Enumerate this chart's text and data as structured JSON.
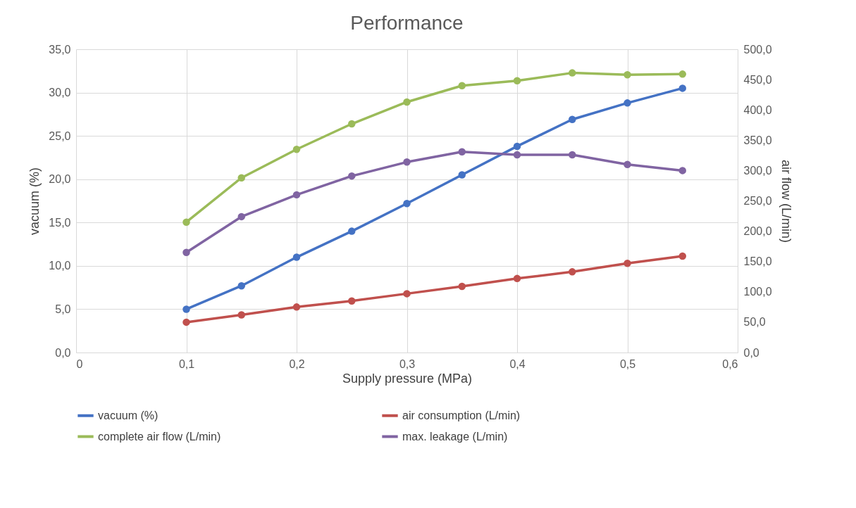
{
  "chart_data": {
    "type": "line",
    "title": "Performance",
    "xlabel": "Supply pressure (MPa)",
    "ylabel": "vacuum (%)",
    "y2label": "air flow (L/min)",
    "x": [
      0.1,
      0.15,
      0.2,
      0.25,
      0.3,
      0.35,
      0.4,
      0.45,
      0.5,
      0.55
    ],
    "xlim": [
      0,
      0.6
    ],
    "xticks": [
      {
        "value": 0,
        "label": "0"
      },
      {
        "value": 0.1,
        "label": "0,1"
      },
      {
        "value": 0.2,
        "label": "0,2"
      },
      {
        "value": 0.3,
        "label": "0,3"
      },
      {
        "value": 0.4,
        "label": "0,4"
      },
      {
        "value": 0.5,
        "label": "0,5"
      },
      {
        "value": 0.6,
        "label": "0,6"
      }
    ],
    "ylim": [
      0,
      35
    ],
    "yticks": [
      {
        "value": 0,
        "label": "0,0"
      },
      {
        "value": 5,
        "label": "5,0"
      },
      {
        "value": 10,
        "label": "10,0"
      },
      {
        "value": 15,
        "label": "15,0"
      },
      {
        "value": 20,
        "label": "20,0"
      },
      {
        "value": 25,
        "label": "25,0"
      },
      {
        "value": 30,
        "label": "30,0"
      },
      {
        "value": 35,
        "label": "35,0"
      }
    ],
    "y2lim": [
      0,
      500
    ],
    "y2ticks": [
      {
        "value": 0,
        "label": "0,0"
      },
      {
        "value": 50,
        "label": "50,0"
      },
      {
        "value": 100,
        "label": "100,0"
      },
      {
        "value": 150,
        "label": "150,0"
      },
      {
        "value": 200,
        "label": "200,0"
      },
      {
        "value": 250,
        "label": "250,0"
      },
      {
        "value": 300,
        "label": "300,0"
      },
      {
        "value": 350,
        "label": "350,0"
      },
      {
        "value": 400,
        "label": "400,0"
      },
      {
        "value": 450,
        "label": "450,0"
      },
      {
        "value": 500,
        "label": "500,0"
      }
    ],
    "grid": true,
    "legend": "bottom",
    "marker": "circle",
    "line_style": "solid",
    "series": [
      {
        "name": "vacuum (%)",
        "color": "#4472c4",
        "values": [
          5.0,
          7.7,
          11.0,
          14.0,
          17.2,
          20.5,
          23.8,
          26.9,
          28.8,
          30.5
        ]
      },
      {
        "name": "air consumption (L/min)",
        "color": "#c0504d",
        "axis": "y2",
        "values": [
          50,
          62,
          75,
          85,
          97,
          109,
          122,
          133,
          147,
          159
        ]
      },
      {
        "name": "complete air flow (L/min)",
        "color": "#9bbb59",
        "axis": "y2",
        "values": [
          215,
          288,
          335,
          377,
          413,
          440,
          448,
          461,
          458,
          459
        ]
      },
      {
        "name": "max. leakage (L/min)",
        "color": "#8064a2",
        "axis": "y2",
        "values": [
          165,
          224,
          260,
          291,
          314,
          331,
          326,
          326,
          310,
          300
        ]
      }
    ]
  }
}
